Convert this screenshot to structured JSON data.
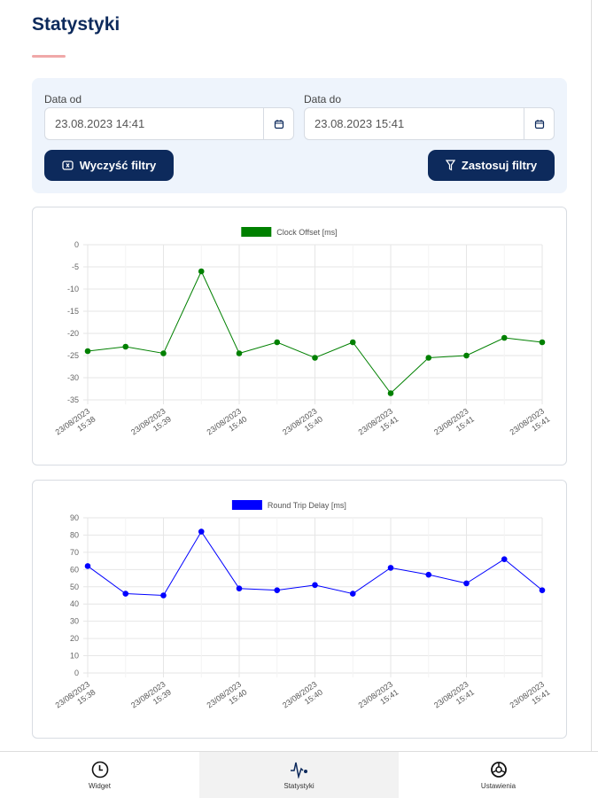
{
  "page": {
    "title": "Statystyki"
  },
  "filters": {
    "from_label": "Data od",
    "from_value": "23.08.2023 14:41",
    "to_label": "Data do",
    "to_value": "23.08.2023 15:41",
    "clear_label": "Wyczyść filtry",
    "apply_label": "Zastosuj filtry"
  },
  "nav": [
    {
      "label": "Widget",
      "icon": "clock-icon"
    },
    {
      "label": "Statystyki",
      "icon": "pulse-icon",
      "active": true
    },
    {
      "label": "Ustawienia",
      "icon": "settings-icon"
    }
  ],
  "chart_data": [
    {
      "type": "line",
      "legend": "Clock Offset [ms]",
      "color": "#008000",
      "ylim": [
        -35,
        0
      ],
      "yticks": [
        0,
        -5,
        -10,
        -15,
        -20,
        -25,
        -30,
        -35
      ],
      "x_labels": [
        "23/08/2023 15:38",
        "23/08/2023 15:39",
        "23/08/2023 15:40",
        "23/08/2023 15:40",
        "23/08/2023 15:41",
        "23/08/2023 15:41",
        "23/08/2023 15:41"
      ],
      "values": [
        -24,
        -23,
        -24.5,
        -6,
        -24.5,
        -22,
        -25.5,
        -22,
        -33.5,
        -25.5,
        -25,
        -21,
        -22
      ]
    },
    {
      "type": "line",
      "legend": "Round Trip Delay [ms]",
      "color": "#0000ff",
      "ylim": [
        0,
        90
      ],
      "yticks": [
        90,
        80,
        70,
        60,
        50,
        40,
        30,
        20,
        10,
        0
      ],
      "x_labels": [
        "23/08/2023 15:38",
        "23/08/2023 15:39",
        "23/08/2023 15:40",
        "23/08/2023 15:40",
        "23/08/2023 15:41",
        "23/08/2023 15:41",
        "23/08/2023 15:41"
      ],
      "values": [
        62,
        46,
        45,
        82,
        49,
        48,
        51,
        46,
        61,
        57,
        52,
        66,
        48
      ]
    }
  ]
}
